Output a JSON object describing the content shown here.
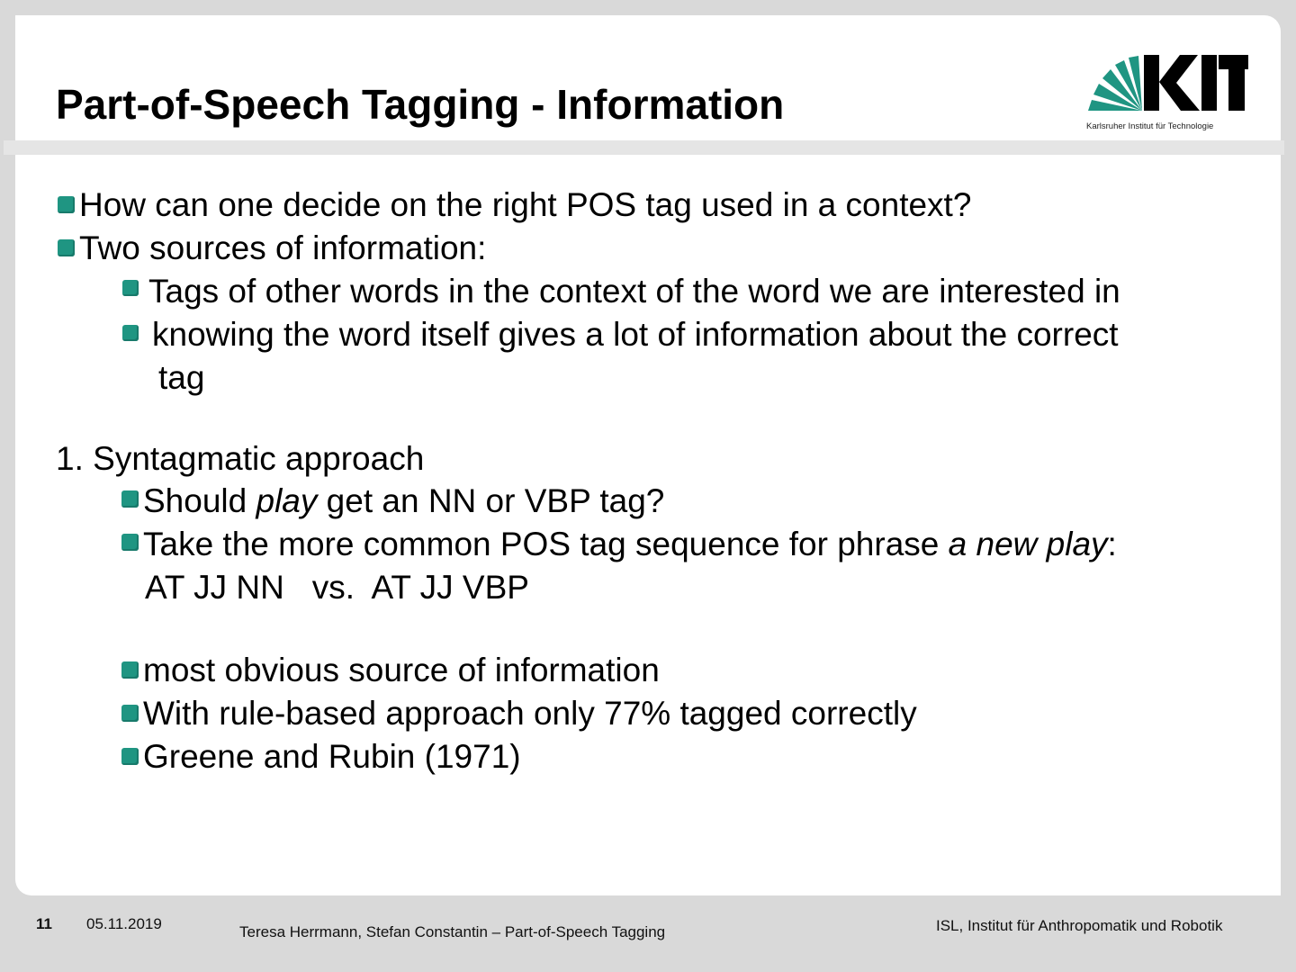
{
  "slide": {
    "title": "Part-of-Speech Tagging - Information",
    "logo": {
      "wordmark": "KIT",
      "subtitle": "Karlsruher Institut für Technologie"
    },
    "bullets_level1": [
      "How can one decide on the right POS tag used in a context?",
      "Two sources of information:"
    ],
    "bullets_level2": [
      "Tags of other words in the context of the word we are interested in",
      "knowing the word itself gives a lot of information about the correct",
      "tag"
    ],
    "section_heading": "1. Syntagmatic approach",
    "syntagmatic": {
      "q_prefix": "Should ",
      "q_italic": "play",
      "q_suffix": " get an NN or VBP tag?",
      "take_prefix": "Take the more common POS tag sequence for phrase ",
      "take_italic": "a new play",
      "take_suffix": ":",
      "sequence_line": "AT JJ NN   vs.  AT JJ VBP"
    },
    "more_bullets": [
      "most obvious source of information",
      "With rule-based approach only 77% tagged correctly",
      "Greene and Rubin (1971)"
    ]
  },
  "footer": {
    "page_number": "11",
    "date": "05.11.2019",
    "authors": "Teresa Herrmann, Stefan Constantin – Part-of-Speech Tagging",
    "institute": "ISL, Institut für Anthropomatik und Robotik"
  },
  "colors": {
    "accent": "#1f9582",
    "background": "#d9d9d9",
    "slide": "#ffffff"
  }
}
